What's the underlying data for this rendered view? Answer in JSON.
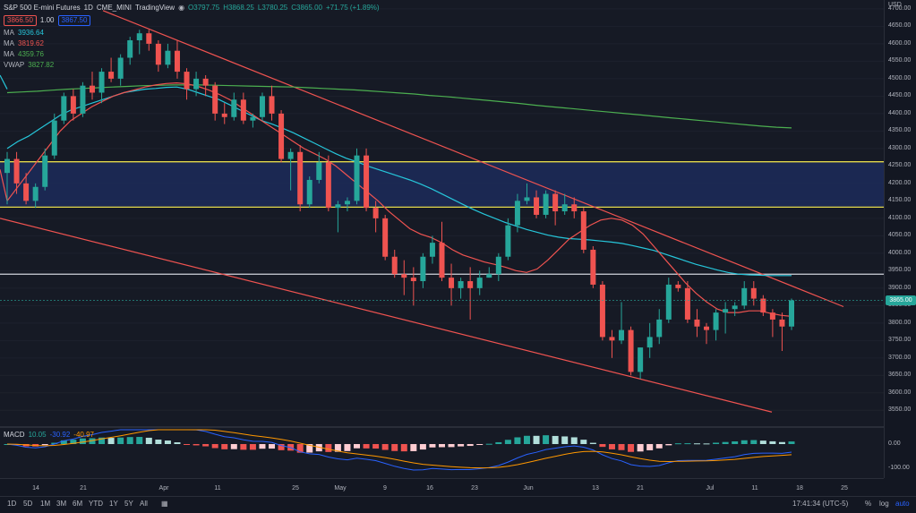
{
  "header": {
    "symbol": "S&P 500 E-mini Futures",
    "interval": "1D",
    "exchange": "CME_MINI",
    "source": "TradingView",
    "open": "O3797.75",
    "high": "H3868.25",
    "low": "L3780.25",
    "close": "C3865.00",
    "change": "+71.75 (+1.89%)",
    "bid": "3866.50",
    "qty": "1.00",
    "ask": "3867.50"
  },
  "indicators": [
    {
      "name": "MA",
      "value": "3936.64",
      "color": "#26c6da"
    },
    {
      "name": "MA",
      "value": "3819.62",
      "color": "#ef5350"
    },
    {
      "name": "MA",
      "value": "4359.76",
      "color": "#4caf50"
    },
    {
      "name": "VWAP",
      "value": "3827.82",
      "color": "#4caf50"
    }
  ],
  "macd_legend": {
    "name": "MACD",
    "v1": "10.05",
    "v2": "-30.92",
    "v3": "-40.97"
  },
  "y_axis": {
    "currency": "USD",
    "labels": [
      "4700.00",
      "4650.00",
      "4600.00",
      "4550.00",
      "4500.00",
      "4450.00",
      "4400.00",
      "4350.00",
      "4300.00",
      "4250.00",
      "4200.00",
      "4150.00",
      "4100.00",
      "4050.00",
      "4000.00",
      "3950.00",
      "3900.00",
      "3850.00",
      "3800.00",
      "3750.00",
      "3700.00",
      "3650.00",
      "3600.00",
      "3550.00"
    ],
    "current_price": "3865.00",
    "macd_labels": [
      "0.00",
      "-100.00"
    ]
  },
  "x_axis": {
    "labels": [
      "14",
      "21",
      "Apr",
      "11",
      "25",
      "May",
      "9",
      "16",
      "23",
      "Jun",
      "13",
      "21",
      "Jul",
      "11",
      "18",
      "25"
    ]
  },
  "bottom_bar": {
    "ranges": [
      "1D",
      "5D",
      "1M",
      "3M",
      "6M",
      "YTD",
      "1Y",
      "5Y",
      "All"
    ],
    "time": "17:41:34 (UTC-5)",
    "percent": "%",
    "log": "log",
    "auto": "auto"
  },
  "chart_data": {
    "type": "candlestick",
    "price_range": [
      3520,
      4710
    ],
    "candles": [
      [
        4230,
        4290,
        4140,
        4270
      ],
      [
        4270,
        4290,
        4170,
        4200
      ],
      [
        4200,
        4230,
        4140,
        4150
      ],
      [
        4150,
        4200,
        4130,
        4190
      ],
      [
        4190,
        4300,
        4180,
        4280
      ],
      [
        4280,
        4400,
        4270,
        4380
      ],
      [
        4380,
        4460,
        4370,
        4450
      ],
      [
        4450,
        4470,
        4380,
        4400
      ],
      [
        4400,
        4490,
        4390,
        4480
      ],
      [
        4480,
        4520,
        4440,
        4460
      ],
      [
        4460,
        4530,
        4430,
        4520
      ],
      [
        4520,
        4560,
        4490,
        4500
      ],
      [
        4500,
        4570,
        4480,
        4560
      ],
      [
        4560,
        4620,
        4540,
        4610
      ],
      [
        4610,
        4640,
        4570,
        4630
      ],
      [
        4630,
        4640,
        4580,
        4600
      ],
      [
        4600,
        4610,
        4520,
        4540
      ],
      [
        4540,
        4600,
        4530,
        4580
      ],
      [
        4580,
        4610,
        4500,
        4520
      ],
      [
        4520,
        4530,
        4440,
        4470
      ],
      [
        4470,
        4520,
        4450,
        4500
      ],
      [
        4500,
        4510,
        4450,
        4480
      ],
      [
        4480,
        4490,
        4380,
        4400
      ],
      [
        4400,
        4430,
        4370,
        4390
      ],
      [
        4390,
        4460,
        4380,
        4440
      ],
      [
        4440,
        4460,
        4370,
        4380
      ],
      [
        4380,
        4400,
        4360,
        4390
      ],
      [
        4390,
        4460,
        4380,
        4450
      ],
      [
        4450,
        4480,
        4380,
        4400
      ],
      [
        4400,
        4410,
        4260,
        4270
      ],
      [
        4270,
        4300,
        4180,
        4290
      ],
      [
        4290,
        4310,
        4120,
        4140
      ],
      [
        4140,
        4220,
        4130,
        4210
      ],
      [
        4210,
        4290,
        4200,
        4260
      ],
      [
        4260,
        4280,
        4120,
        4130
      ],
      [
        4130,
        4150,
        4060,
        4140
      ],
      [
        4140,
        4160,
        4120,
        4150
      ],
      [
        4150,
        4300,
        4140,
        4280
      ],
      [
        4280,
        4300,
        4120,
        4130
      ],
      [
        4130,
        4150,
        4060,
        4100
      ],
      [
        4100,
        4110,
        3980,
        3990
      ],
      [
        3990,
        4010,
        3930,
        3940
      ],
      [
        3940,
        3980,
        3880,
        3930
      ],
      [
        3930,
        3960,
        3850,
        3920
      ],
      [
        3920,
        4000,
        3900,
        3990
      ],
      [
        3990,
        4050,
        3970,
        4030
      ],
      [
        4030,
        4090,
        3920,
        3930
      ],
      [
        3930,
        3970,
        3850,
        3900
      ],
      [
        3900,
        3930,
        3870,
        3920
      ],
      [
        3920,
        3960,
        3810,
        3900
      ],
      [
        3900,
        3950,
        3880,
        3930
      ],
      [
        3930,
        3960,
        3930,
        3940
      ],
      [
        3940,
        4000,
        3920,
        3990
      ],
      [
        3990,
        4100,
        3980,
        4080
      ],
      [
        4080,
        4170,
        4060,
        4150
      ],
      [
        4150,
        4200,
        4140,
        4160
      ],
      [
        4160,
        4180,
        4100,
        4110
      ],
      [
        4110,
        4180,
        4100,
        4170
      ],
      [
        4170,
        4180,
        4080,
        4120
      ],
      [
        4120,
        4170,
        4110,
        4140
      ],
      [
        4140,
        4160,
        4100,
        4120
      ],
      [
        4120,
        4130,
        4000,
        4010
      ],
      [
        4010,
        4020,
        3900,
        3910
      ],
      [
        3910,
        3920,
        3750,
        3760
      ],
      [
        3760,
        3780,
        3700,
        3750
      ],
      [
        3750,
        3860,
        3740,
        3780
      ],
      [
        3780,
        3790,
        3650,
        3660
      ],
      [
        3660,
        3730,
        3640,
        3730
      ],
      [
        3730,
        3800,
        3700,
        3760
      ],
      [
        3760,
        3840,
        3740,
        3810
      ],
      [
        3810,
        3930,
        3800,
        3910
      ],
      [
        3910,
        3920,
        3890,
        3900
      ],
      [
        3900,
        3920,
        3800,
        3810
      ],
      [
        3810,
        3840,
        3760,
        3790
      ],
      [
        3790,
        3800,
        3740,
        3780
      ],
      [
        3780,
        3840,
        3750,
        3830
      ],
      [
        3830,
        3860,
        3770,
        3840
      ],
      [
        3840,
        3860,
        3820,
        3850
      ],
      [
        3850,
        3920,
        3840,
        3900
      ],
      [
        3900,
        3920,
        3850,
        3870
      ],
      [
        3870,
        3880,
        3820,
        3830
      ],
      [
        3830,
        3840,
        3760,
        3810
      ],
      [
        3810,
        3830,
        3720,
        3790
      ],
      [
        3790,
        3870,
        3780,
        3865
      ]
    ],
    "ma_short": [
      4300,
      4320,
      4335,
      4355,
      4375,
      4395,
      4410,
      4420,
      4430,
      4440,
      4450,
      4460,
      4465,
      4470,
      4472,
      4475,
      4476,
      4470,
      4460,
      4450,
      4440,
      4425,
      4410,
      4395,
      4380,
      4370,
      4358,
      4345,
      4330,
      4315,
      4300,
      4285,
      4272,
      4262,
      4250,
      4240,
      4230,
      4220,
      4210,
      4198,
      4185,
      4170,
      4155,
      4140,
      4125,
      4112,
      4100,
      4088,
      4078,
      4068,
      4060,
      4052,
      4046,
      4042,
      4040,
      4038,
      4035,
      4032,
      4028,
      4022,
      4015,
      4008,
      3998,
      3988,
      3978,
      3968,
      3960,
      3952,
      3945,
      3940,
      3938,
      3937,
      3936,
      3936,
      3936
    ],
    "ma_mid": [
      4150,
      4190,
      4230,
      4270,
      4310,
      4350,
      4380,
      4400,
      4420,
      4435,
      4450,
      4460,
      4468,
      4476,
      4482,
      4486,
      4488,
      4485,
      4478,
      4468,
      4455,
      4440,
      4420,
      4400,
      4380,
      4360,
      4340,
      4320,
      4300,
      4285,
      4270,
      4250,
      4225,
      4200,
      4175,
      4150,
      4120,
      4095,
      4070,
      4055,
      4045,
      4030,
      4010,
      3995,
      3985,
      3975,
      3968,
      3960,
      3950,
      3945,
      3955,
      3980,
      4010,
      4040,
      4060,
      4080,
      4095,
      4100,
      4095,
      4080,
      4055,
      4020,
      3985,
      3950,
      3915,
      3885,
      3860,
      3840,
      3830,
      3830,
      3835,
      3835,
      3828,
      3822,
      3819
    ],
    "ma_long": [
      4460,
      4462,
      4464,
      4467,
      4470,
      4472,
      4474,
      4476,
      4478,
      4480,
      4481,
      4482,
      4482,
      4482,
      4481,
      4480,
      4479,
      4478,
      4477,
      4476,
      4474,
      4472,
      4470,
      4468,
      4465,
      4462,
      4459,
      4456,
      4452,
      4449,
      4445,
      4441,
      4437,
      4433,
      4429,
      4424,
      4420,
      4416,
      4412,
      4408,
      4404,
      4400,
      4396,
      4392,
      4388,
      4384,
      4380,
      4376,
      4372,
      4368,
      4364,
      4361,
      4359
    ]
  }
}
